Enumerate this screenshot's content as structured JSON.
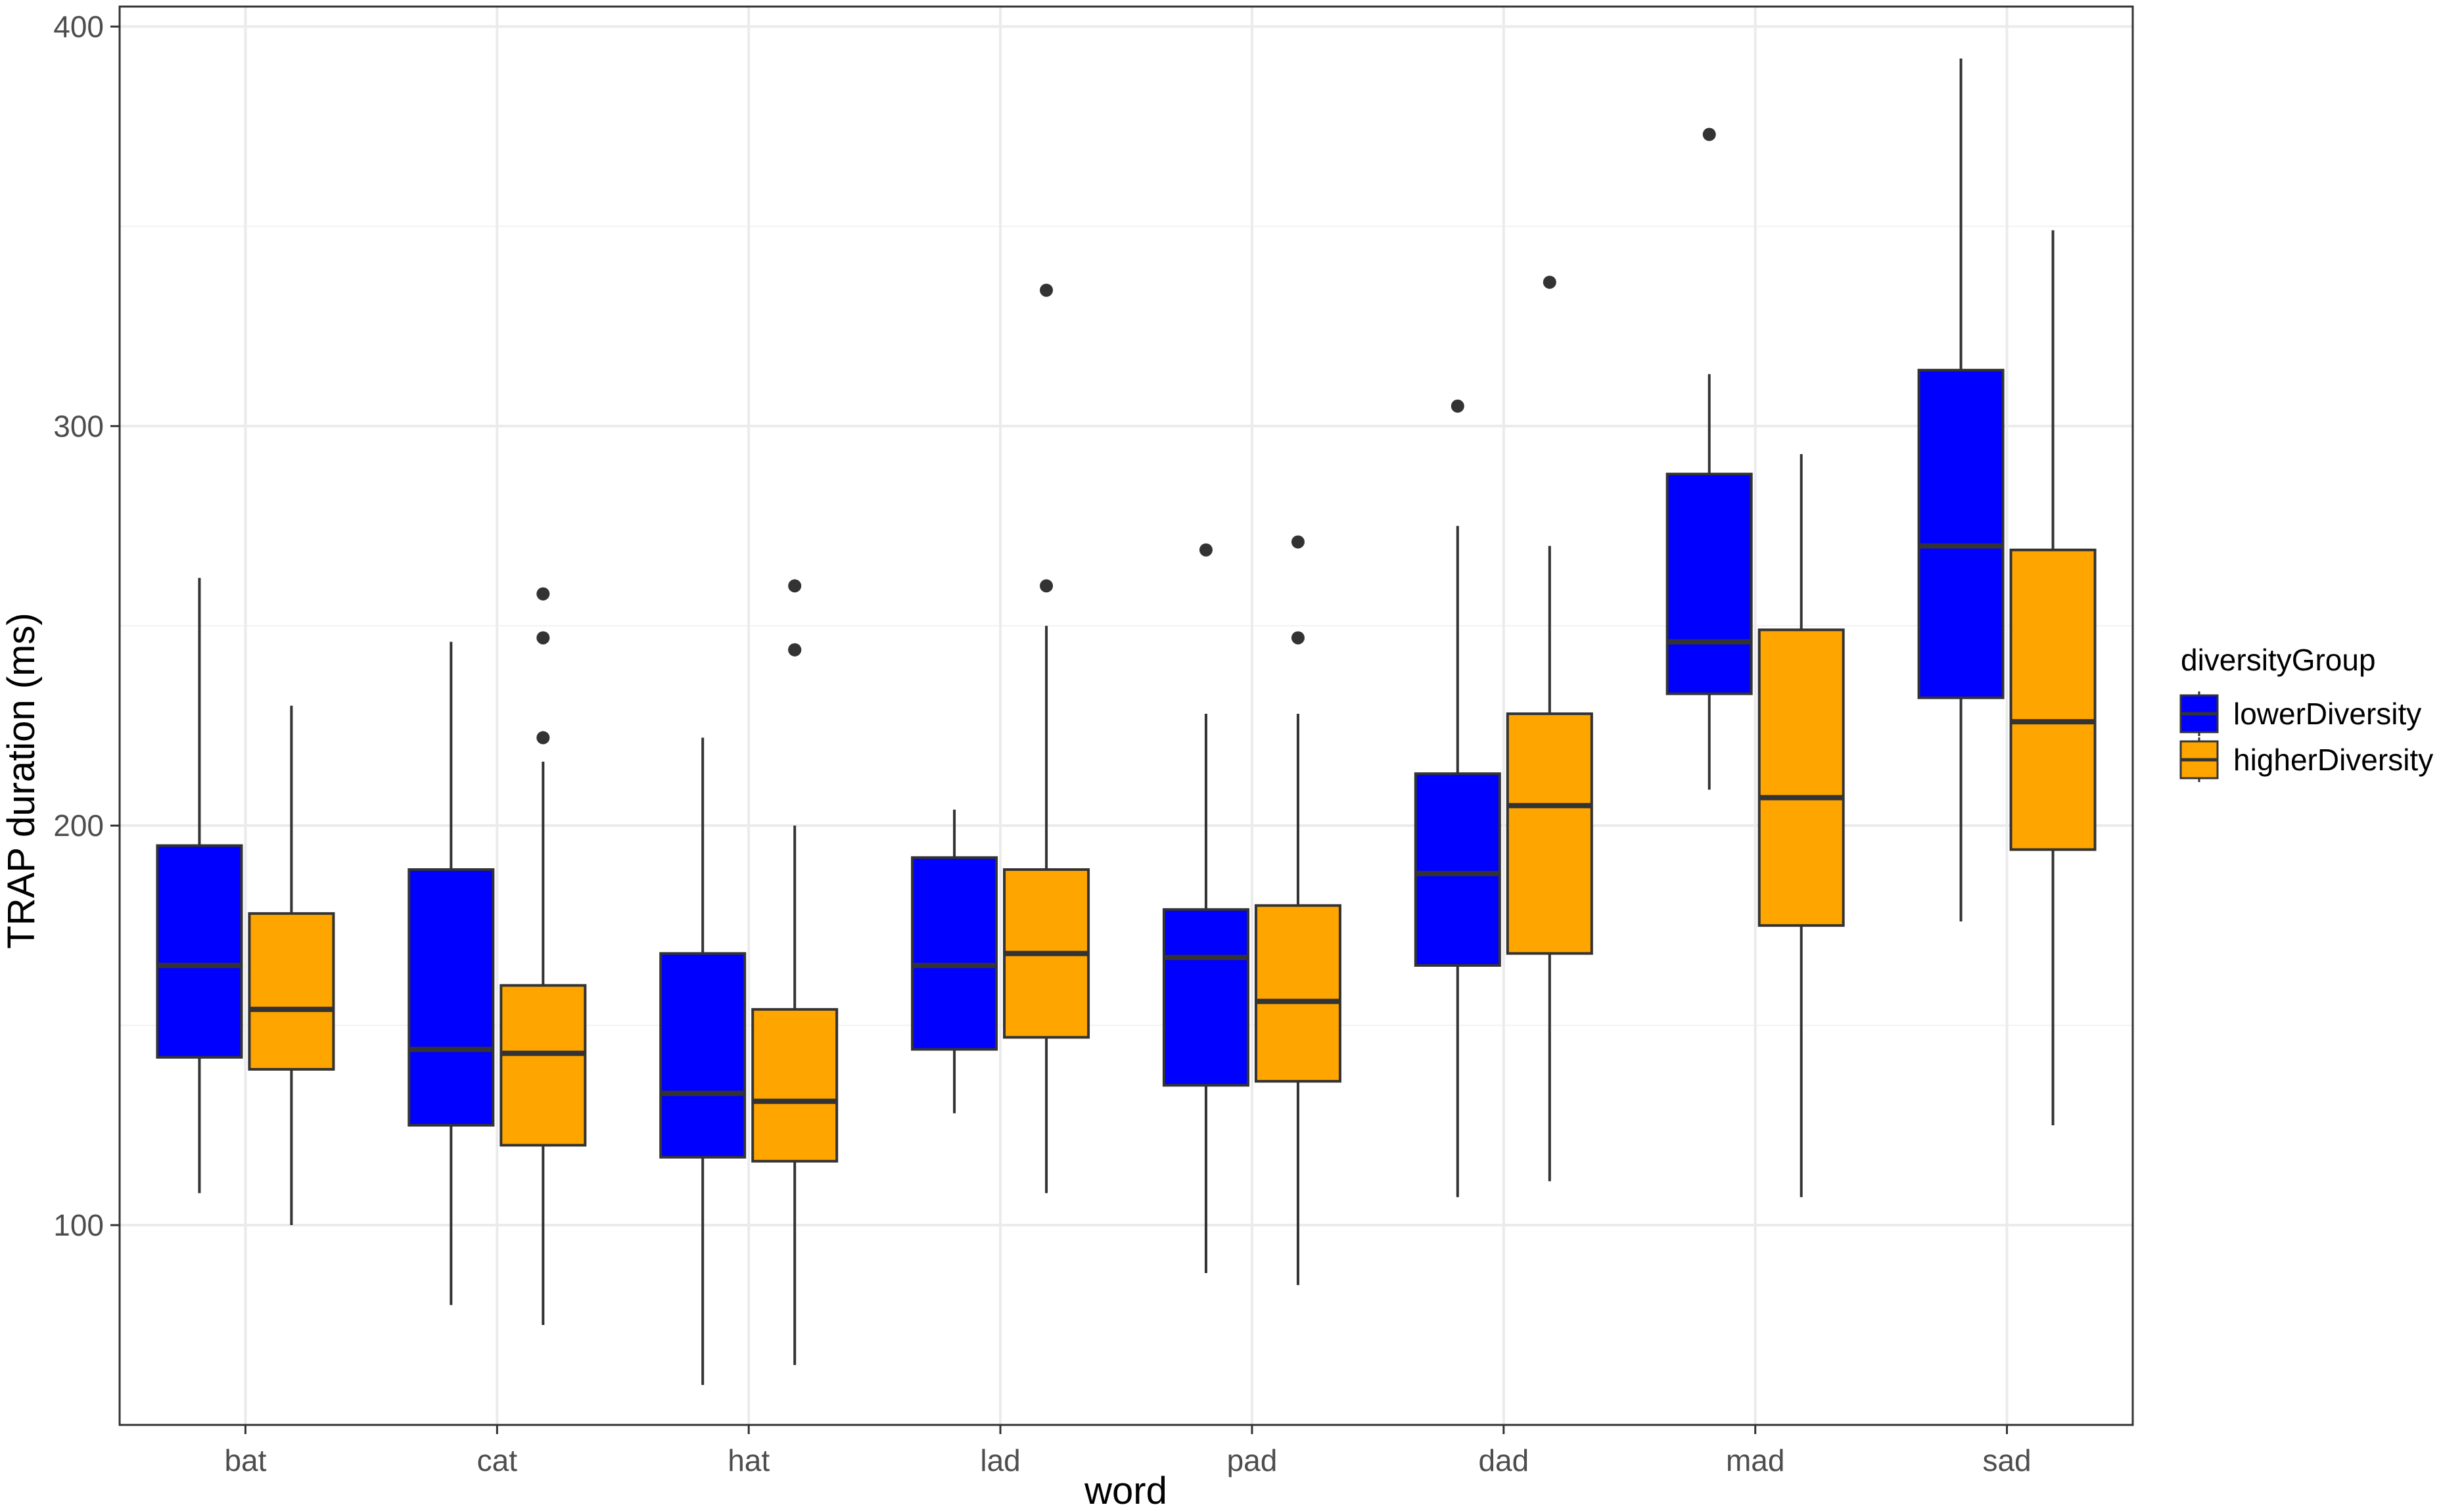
{
  "chart_data": {
    "type": "boxplot",
    "xlabel": "word",
    "ylabel": "TRAP duration (ms)",
    "ylim": [
      50,
      405
    ],
    "yticks": [
      100,
      200,
      300,
      400
    ],
    "grid": true,
    "legend_position": "right",
    "categories": [
      "bat",
      "cat",
      "hat",
      "lad",
      "pad",
      "dad",
      "mad",
      "sad"
    ],
    "legend": {
      "title": "diversityGroup",
      "entries": [
        "lowerDiversity",
        "higherDiversity"
      ]
    },
    "series": [
      {
        "name": "lowerDiversity",
        "color": "#0000FF",
        "boxes": [
          {
            "whisker_low": 108,
            "q1": 142,
            "median": 165,
            "q3": 195,
            "whisker_high": 262,
            "outliers": []
          },
          {
            "whisker_low": 80,
            "q1": 125,
            "median": 144,
            "q3": 189,
            "whisker_high": 246,
            "outliers": []
          },
          {
            "whisker_low": 60,
            "q1": 117,
            "median": 133,
            "q3": 168,
            "whisker_high": 222,
            "outliers": []
          },
          {
            "whisker_low": 128,
            "q1": 144,
            "median": 165,
            "q3": 192,
            "whisker_high": 204,
            "outliers": []
          },
          {
            "whisker_low": 88,
            "q1": 135,
            "median": 167,
            "q3": 179,
            "whisker_high": 228,
            "outliers": [
              269
            ]
          },
          {
            "whisker_low": 107,
            "q1": 165,
            "median": 188,
            "q3": 213,
            "whisker_high": 275,
            "outliers": [
              305
            ]
          },
          {
            "whisker_low": 209,
            "q1": 233,
            "median": 246,
            "q3": 288,
            "whisker_high": 313,
            "outliers": [
              373
            ]
          },
          {
            "whisker_low": 176,
            "q1": 232,
            "median": 270,
            "q3": 314,
            "whisker_high": 392,
            "outliers": []
          }
        ]
      },
      {
        "name": "higherDiversity",
        "color": "#FFA500",
        "boxes": [
          {
            "whisker_low": 100,
            "q1": 139,
            "median": 154,
            "q3": 178,
            "whisker_high": 230,
            "outliers": []
          },
          {
            "whisker_low": 75,
            "q1": 120,
            "median": 143,
            "q3": 160,
            "whisker_high": 216,
            "outliers": [
              222,
              247,
              258
            ]
          },
          {
            "whisker_low": 65,
            "q1": 116,
            "median": 131,
            "q3": 154,
            "whisker_high": 200,
            "outliers": [
              244,
              244,
              260
            ]
          },
          {
            "whisker_low": 108,
            "q1": 147,
            "median": 168,
            "q3": 189,
            "whisker_high": 250,
            "outliers": [
              260,
              334
            ]
          },
          {
            "whisker_low": 85,
            "q1": 136,
            "median": 156,
            "q3": 180,
            "whisker_high": 228,
            "outliers": [
              247,
              271
            ]
          },
          {
            "whisker_low": 111,
            "q1": 168,
            "median": 205,
            "q3": 228,
            "whisker_high": 270,
            "outliers": [
              336
            ]
          },
          {
            "whisker_low": 107,
            "q1": 175,
            "median": 207,
            "q3": 249,
            "whisker_high": 293,
            "outliers": []
          },
          {
            "whisker_low": 125,
            "q1": 194,
            "median": 226,
            "q3": 269,
            "whisker_high": 349,
            "outliers": []
          }
        ]
      }
    ]
  }
}
